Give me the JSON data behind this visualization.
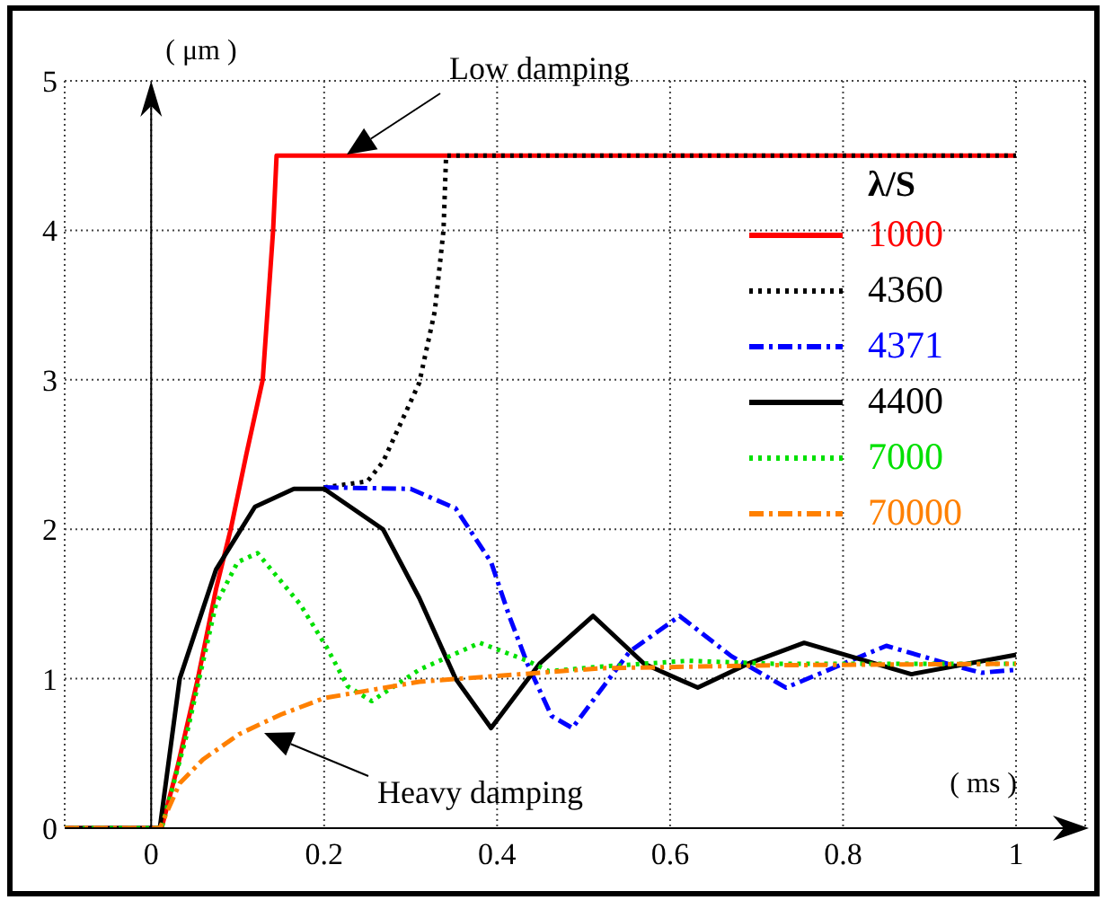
{
  "chart_data": {
    "type": "line",
    "xlabel": "( ms )",
    "ylabel": "( μm )",
    "legend_title": "λ/S",
    "xlim": [
      -0.1,
      1.08
    ],
    "ylim": [
      0,
      5
    ],
    "xticks": [
      0,
      0.2,
      0.4,
      0.6,
      0.8,
      1
    ],
    "yticks": [
      0,
      1,
      2,
      3,
      4,
      5
    ],
    "grid": true,
    "legend": "right",
    "marker": "none",
    "annotations": [
      "Low damping",
      "Heavy damping"
    ],
    "series": [
      {
        "name": "1000",
        "color": "#ff0000",
        "line_style": "solid",
        "x": [
          -0.1,
          0,
          0.012,
          0.03,
          0.054,
          0.075,
          0.092,
          0.11,
          0.129,
          0.141,
          0.145,
          1
        ],
        "values": [
          0,
          0,
          0,
          0.4,
          1,
          1.6,
          2,
          2.5,
          3,
          4,
          4.5,
          4.5
        ]
      },
      {
        "name": "4360",
        "color": "#000000",
        "line_style": "dotted",
        "x": [
          0.2,
          0.25,
          0.268,
          0.31,
          0.328,
          0.338,
          0.341,
          1
        ],
        "values": [
          2.28,
          2.32,
          2.45,
          2.98,
          3.46,
          4,
          4.5,
          4.5
        ]
      },
      {
        "name": "4371",
        "color": "#0000ff",
        "line_style": "dashed",
        "x": [
          0.2,
          0.3,
          0.352,
          0.393,
          0.414,
          0.435,
          0.463,
          0.487,
          0.553,
          0.611,
          0.671,
          0.734,
          0.85,
          0.933,
          0.96,
          1
        ],
        "values": [
          2.28,
          2.27,
          2.14,
          1.78,
          1.42,
          1.1,
          0.75,
          0.67,
          1.18,
          1.42,
          1.15,
          0.94,
          1.22,
          1.08,
          1.04,
          1.06
        ]
      },
      {
        "name": "4400",
        "color": "#000000",
        "line_style": "solid",
        "x": [
          -0.1,
          0,
          0.01,
          0.033,
          0.075,
          0.12,
          0.165,
          0.2,
          0.268,
          0.31,
          0.352,
          0.393,
          0.449,
          0.511,
          0.57,
          0.632,
          0.69,
          0.755,
          0.879,
          1
        ],
        "values": [
          0,
          0,
          0,
          1,
          1.73,
          2.15,
          2.27,
          2.27,
          2,
          1.54,
          1,
          0.67,
          1.1,
          1.42,
          1.1,
          0.94,
          1.1,
          1.24,
          1.03,
          1.16
        ]
      },
      {
        "name": "7000",
        "color": "#00e000",
        "line_style": "dotted",
        "x": [
          -0.1,
          0,
          0.012,
          0.04,
          0.075,
          0.1,
          0.123,
          0.172,
          0.203,
          0.227,
          0.255,
          0.31,
          0.38,
          0.435,
          0.46,
          0.518,
          0.62,
          0.72,
          1
        ],
        "values": [
          0,
          0,
          0,
          0.6,
          1.5,
          1.78,
          1.84,
          1.5,
          1.21,
          0.95,
          0.85,
          1.06,
          1.24,
          1.12,
          1.05,
          1.08,
          1.12,
          1.1,
          1.1
        ]
      },
      {
        "name": "70000",
        "color": "#ff8000",
        "line_style": "dashed",
        "x": [
          -0.1,
          0,
          0.01,
          0.033,
          0.06,
          0.102,
          0.15,
          0.2,
          0.31,
          0.45,
          0.52,
          0.72,
          1
        ],
        "values": [
          0,
          0,
          0,
          0.3,
          0.46,
          0.63,
          0.76,
          0.87,
          0.98,
          1.04,
          1.07,
          1.09,
          1.1
        ]
      }
    ]
  }
}
